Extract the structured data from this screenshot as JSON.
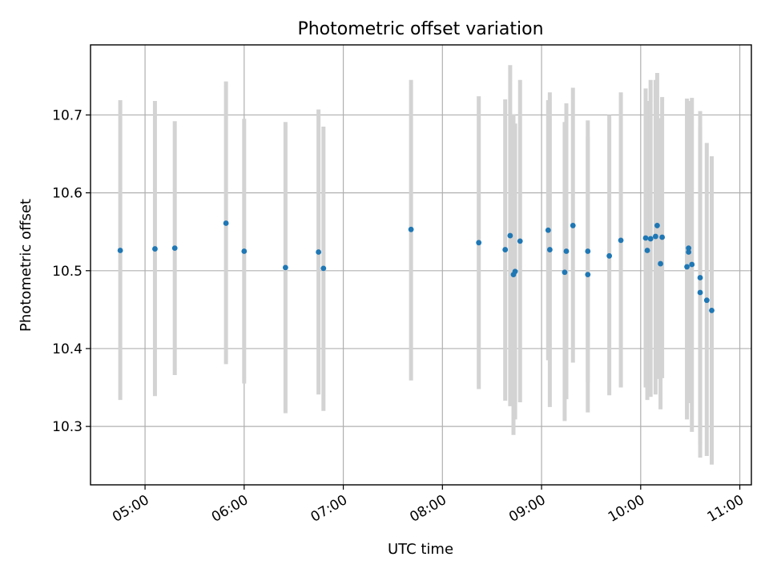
{
  "chart_data": {
    "type": "scatter",
    "title": "Photometric offset variation",
    "xlabel": "UTC time",
    "ylabel": "Photometric offset",
    "x_tick_labels": [
      "05:00",
      "06:00",
      "07:00",
      "08:00",
      "09:00",
      "10:00",
      "11:00"
    ],
    "y_tick_labels": [
      "10.3",
      "10.4",
      "10.5",
      "10.6",
      "10.7"
    ],
    "xlim": [
      "04:27",
      "11:07"
    ],
    "ylim": [
      10.225,
      10.79
    ],
    "grid": true,
    "colors": {
      "point": "#1f77b4",
      "errorbar": "#d3d3d3",
      "grid": "#b0b0b0"
    },
    "points": [
      {
        "time": "04:45",
        "y": 10.526,
        "low": 10.334,
        "high": 10.719
      },
      {
        "time": "05:06",
        "y": 10.528,
        "low": 10.339,
        "high": 10.718
      },
      {
        "time": "05:18",
        "y": 10.529,
        "low": 10.366,
        "high": 10.692
      },
      {
        "time": "05:49",
        "y": 10.561,
        "low": 10.38,
        "high": 10.743
      },
      {
        "time": "06:00",
        "y": 10.525,
        "low": 10.355,
        "high": 10.695
      },
      {
        "time": "06:25",
        "y": 10.504,
        "low": 10.317,
        "high": 10.691
      },
      {
        "time": "06:45",
        "y": 10.524,
        "low": 10.341,
        "high": 10.707
      },
      {
        "time": "06:48",
        "y": 10.503,
        "low": 10.32,
        "high": 10.685
      },
      {
        "time": "07:41",
        "y": 10.553,
        "low": 10.359,
        "high": 10.745
      },
      {
        "time": "08:22",
        "y": 10.536,
        "low": 10.348,
        "high": 10.724
      },
      {
        "time": "08:38",
        "y": 10.527,
        "low": 10.333,
        "high": 10.72
      },
      {
        "time": "08:41",
        "y": 10.545,
        "low": 10.326,
        "high": 10.764
      },
      {
        "time": "08:43",
        "y": 10.495,
        "low": 10.289,
        "high": 10.701
      },
      {
        "time": "08:44",
        "y": 10.499,
        "low": 10.309,
        "high": 10.689
      },
      {
        "time": "08:47",
        "y": 10.538,
        "low": 10.331,
        "high": 10.745
      },
      {
        "time": "09:04",
        "y": 10.552,
        "low": 10.385,
        "high": 10.719
      },
      {
        "time": "09:05",
        "y": 10.527,
        "low": 10.325,
        "high": 10.729
      },
      {
        "time": "09:14",
        "y": 10.498,
        "low": 10.307,
        "high": 10.691
      },
      {
        "time": "09:15",
        "y": 10.525,
        "low": 10.335,
        "high": 10.715
      },
      {
        "time": "09:19",
        "y": 10.558,
        "low": 10.382,
        "high": 10.735
      },
      {
        "time": "09:28",
        "y": 10.495,
        "low": 10.318,
        "high": 10.672
      },
      {
        "time": "09:28",
        "y": 10.525,
        "low": 10.357,
        "high": 10.693
      },
      {
        "time": "09:41",
        "y": 10.519,
        "low": 10.34,
        "high": 10.7
      },
      {
        "time": "09:48",
        "y": 10.539,
        "low": 10.35,
        "high": 10.729
      },
      {
        "time": "10:03",
        "y": 10.542,
        "low": 10.35,
        "high": 10.734
      },
      {
        "time": "10:04",
        "y": 10.526,
        "low": 10.334,
        "high": 10.718
      },
      {
        "time": "10:06",
        "y": 10.541,
        "low": 10.338,
        "high": 10.745
      },
      {
        "time": "10:09",
        "y": 10.544,
        "low": 10.341,
        "high": 10.745
      },
      {
        "time": "10:10",
        "y": 10.558,
        "low": 10.361,
        "high": 10.754
      },
      {
        "time": "10:12",
        "y": 10.509,
        "low": 10.322,
        "high": 10.696
      },
      {
        "time": "10:13",
        "y": 10.543,
        "low": 10.362,
        "high": 10.723
      },
      {
        "time": "10:28",
        "y": 10.505,
        "low": 10.309,
        "high": 10.721
      },
      {
        "time": "10:29",
        "y": 10.524,
        "low": 10.33,
        "high": 10.718
      },
      {
        "time": "10:29",
        "y": 10.529,
        "low": 10.348,
        "high": 10.71
      },
      {
        "time": "10:31",
        "y": 10.508,
        "low": 10.293,
        "high": 10.722
      },
      {
        "time": "10:36",
        "y": 10.491,
        "low": 10.277,
        "high": 10.705
      },
      {
        "time": "10:36",
        "y": 10.472,
        "low": 10.26,
        "high": 10.684
      },
      {
        "time": "10:40",
        "y": 10.462,
        "low": 10.262,
        "high": 10.664
      },
      {
        "time": "10:43",
        "y": 10.449,
        "low": 10.251,
        "high": 10.647
      }
    ]
  }
}
